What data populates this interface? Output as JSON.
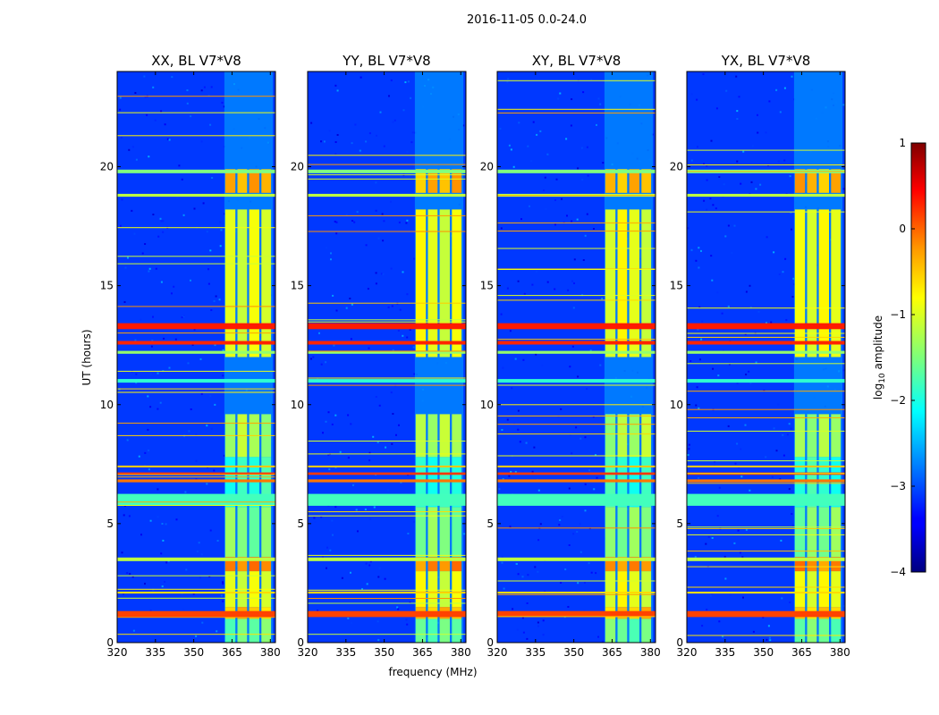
{
  "chart_data": {
    "type": "heatmap",
    "suptitle": "2016-11-05 0.0-24.0",
    "xlabel": "frequency (MHz)",
    "ylabel": "UT (hours)",
    "xlim": [
      320,
      382
    ],
    "ylim": [
      0,
      24
    ],
    "xticks": [
      "320",
      "335",
      "350",
      "365",
      "380"
    ],
    "yticks": [
      "0",
      "5",
      "10",
      "15",
      "20"
    ],
    "panels": [
      {
        "title": "XX, BL V7*V8"
      },
      {
        "title": "YY, BL V7*V8"
      },
      {
        "title": "XY, BL V7*V8"
      },
      {
        "title": "YX, BL V7*V8"
      }
    ],
    "colorbar": {
      "label": "log10 amplitude",
      "label_main": "log",
      "label_sub": "10",
      "label_rest": " amplitude",
      "range": [
        -4,
        1
      ],
      "ticks": [
        "1",
        "0",
        "−1",
        "−2",
        "−3",
        "−4"
      ],
      "colormap": "jet"
    },
    "background_level": -3.1,
    "signal_band_mhz": [
      362,
      381
    ],
    "signal_columns_mhz": [
      {
        "start": 362.3,
        "end": 366.3
      },
      {
        "start": 367.1,
        "end": 370.9
      },
      {
        "start": 371.7,
        "end": 375.7
      },
      {
        "start": 376.5,
        "end": 380.3
      }
    ],
    "signal_blocks": [
      {
        "t0": 0.0,
        "t1": 1.0,
        "level": -1.6
      },
      {
        "t0": 1.0,
        "t1": 1.5,
        "level": -0.6
      },
      {
        "t0": 1.5,
        "t1": 3.0,
        "level": -1.0
      },
      {
        "t0": 3.0,
        "t1": 3.6,
        "level": -0.3
      },
      {
        "t0": 3.6,
        "t1": 5.7,
        "level": -1.5
      },
      {
        "t0": 5.7,
        "t1": 7.8,
        "level": -1.9
      },
      {
        "t0": 7.8,
        "t1": 9.6,
        "level": -1.3
      },
      {
        "t0": 12.0,
        "t1": 18.2,
        "level": -1.0
      },
      {
        "t0": 18.9,
        "t1": 19.9,
        "level": -0.5
      }
    ],
    "rfi_lines": [
      {
        "t": 1.2,
        "level": 0.05,
        "width": 0.25
      },
      {
        "t": 2.1,
        "level": -0.7,
        "width": 0.08
      },
      {
        "t": 3.5,
        "level": -1.2,
        "width": 0.15
      },
      {
        "t": 6.0,
        "level": -1.8,
        "width": 0.5
      },
      {
        "t": 6.8,
        "level": -0.2,
        "width": 0.12
      },
      {
        "t": 7.1,
        "level": 0.1,
        "width": 0.1
      },
      {
        "t": 7.4,
        "level": -0.6,
        "width": 0.08
      },
      {
        "t": 11.0,
        "level": -1.9,
        "width": 0.15
      },
      {
        "t": 12.2,
        "level": -1.4,
        "width": 0.12
      },
      {
        "t": 12.6,
        "level": 0.2,
        "width": 0.15
      },
      {
        "t": 13.3,
        "level": 0.25,
        "width": 0.25
      },
      {
        "t": 18.8,
        "level": -1.2,
        "width": 0.12
      },
      {
        "t": 19.8,
        "level": -1.5,
        "width": 0.15
      }
    ],
    "colors": {
      "background": "#ffffff",
      "axis": "#000000"
    }
  }
}
